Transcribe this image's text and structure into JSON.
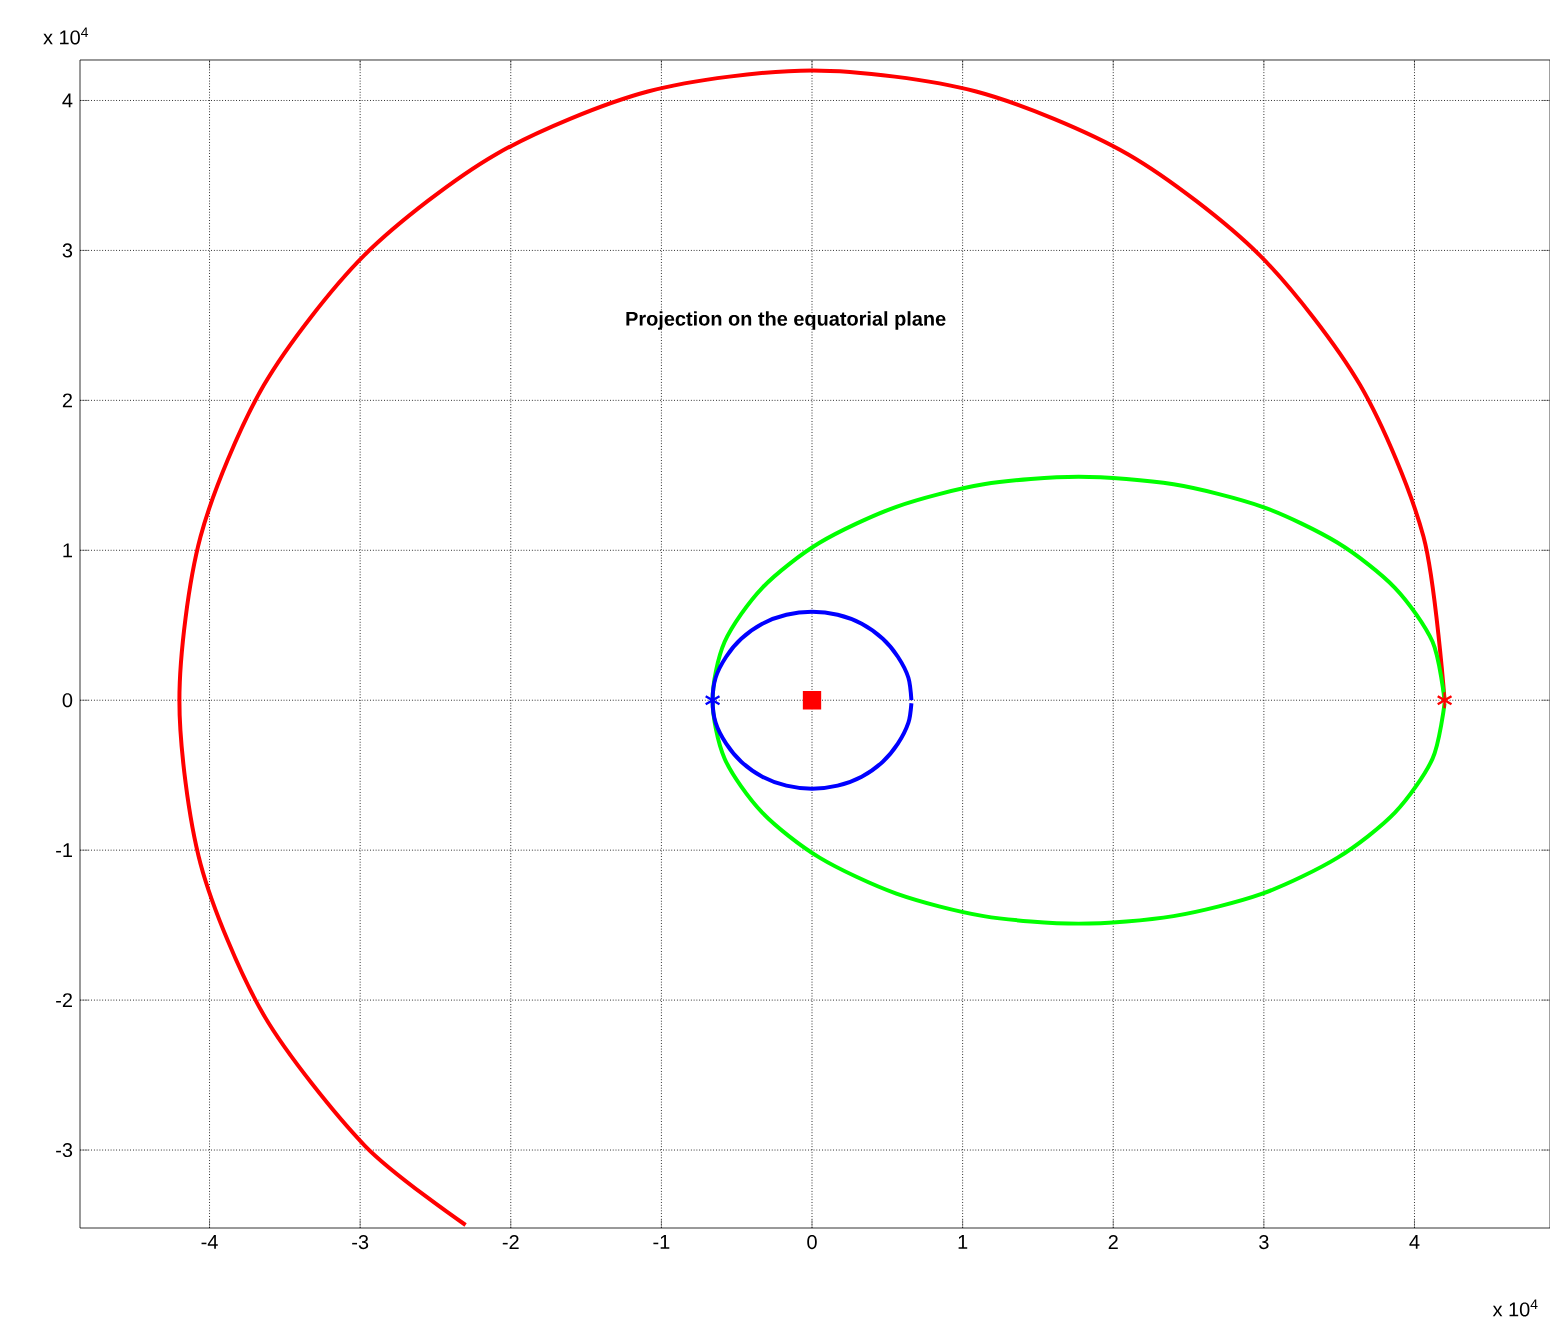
{
  "chart_data": {
    "type": "line",
    "title": "Projection on the equatorial plane",
    "annotations": [
      "x 10$^{4}$",
      "x 10$^{4}$"
    ],
    "xlim": [
      -4.86,
      4.9
    ],
    "ylim": [
      -3.52,
      4.27
    ],
    "xticks": [
      -4,
      -3,
      -2,
      -1,
      0,
      1,
      2,
      3,
      4
    ],
    "yticks": [
      -3,
      -2,
      -1,
      0,
      1,
      2,
      3,
      4
    ],
    "grid": true,
    "line_style": "solid",
    "series": [
      {
        "color": "#ff0000",
        "marker": "none",
        "x": [
          4.2,
          4.06,
          3.64,
          2.97,
          2.1,
          1.09,
          0,
          -1.09,
          -2.1,
          -2.97,
          -3.64,
          -4.06,
          -4.2,
          -4.06,
          -3.64,
          -2.97,
          -2.3
        ],
        "values": [
          0,
          1.09,
          2.1,
          2.97,
          3.64,
          4.06,
          4.2,
          4.06,
          3.64,
          2.97,
          2.1,
          1.09,
          0,
          -1.09,
          -2.1,
          -2.97,
          -3.5
        ]
      },
      {
        "color": "#00ff00",
        "marker": "none",
        "x": [
          4.2,
          4.12,
          3.87,
          3.49,
          2.99,
          2.4,
          1.77,
          1.14,
          0.56,
          0.05,
          -0.33,
          -0.58,
          -0.66,
          -0.58,
          -0.33,
          0.05,
          0.56,
          1.14,
          1.77,
          2.4,
          2.99,
          3.49,
          3.87,
          4.12,
          4.2
        ],
        "values": [
          0,
          0.39,
          0.75,
          1.05,
          1.29,
          1.44,
          1.49,
          1.44,
          1.29,
          1.05,
          0.75,
          0.39,
          0,
          -0.39,
          -0.75,
          -1.05,
          -1.29,
          -1.44,
          -1.49,
          -1.44,
          -1.29,
          -1.05,
          -0.75,
          -0.39,
          -0.02
        ]
      },
      {
        "color": "#0000ff",
        "marker": "none",
        "x": [
          0.66,
          0.64,
          0.57,
          0.47,
          0.33,
          0.17,
          0,
          -0.17,
          -0.33,
          -0.47,
          -0.57,
          -0.64,
          -0.66,
          -0.64,
          -0.57,
          -0.47,
          -0.33,
          -0.17,
          0,
          0.17,
          0.33,
          0.47,
          0.57,
          0.64,
          0.66
        ],
        "values": [
          0,
          0.15,
          0.29,
          0.41,
          0.51,
          0.57,
          0.59,
          0.57,
          0.51,
          0.41,
          0.29,
          0.15,
          0,
          -0.15,
          -0.29,
          -0.41,
          -0.51,
          -0.57,
          -0.59,
          -0.57,
          -0.51,
          -0.41,
          -0.29,
          -0.15,
          -0.02
        ]
      },
      {
        "type": "scatter",
        "color": "#ff0000",
        "marker": "cross",
        "x": [
          4.2
        ],
        "values": [
          0
        ]
      },
      {
        "type": "scatter",
        "color": "#0000ff",
        "marker": "cross",
        "x": [
          -0.66
        ],
        "values": [
          0
        ]
      },
      {
        "type": "scatter",
        "color": "#ff0000",
        "marker": "square",
        "x": [
          0
        ],
        "values": [
          0
        ]
      }
    ]
  }
}
